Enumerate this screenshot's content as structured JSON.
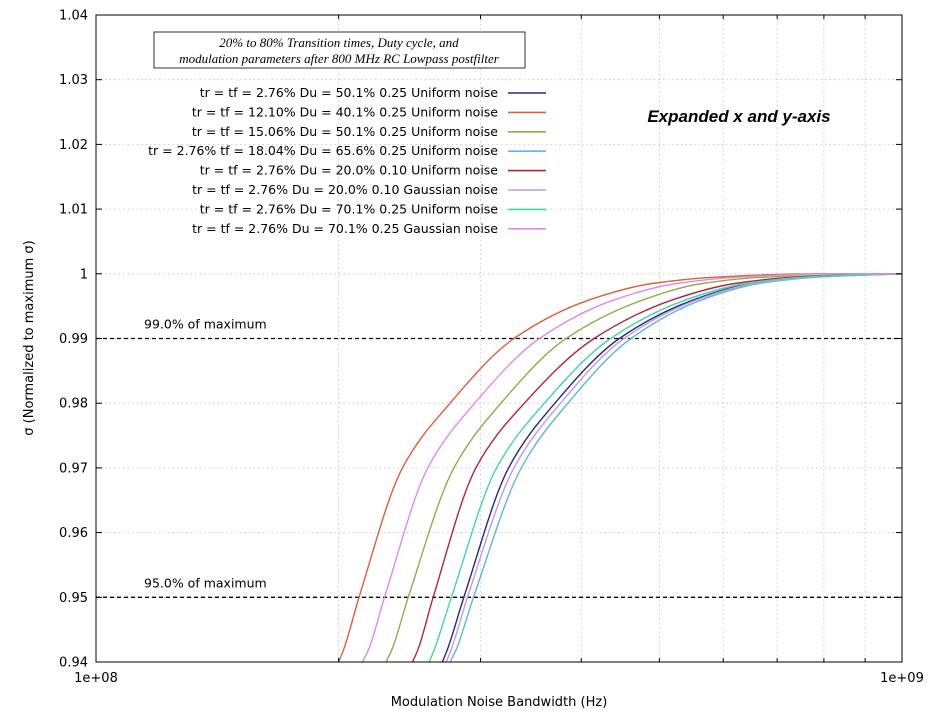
{
  "chart_data": {
    "type": "line",
    "title_lines": [
      "20% to 80% Transition times, Duty cycle, and",
      "modulation parameters after 800 MHz RC Lowpass postfilter"
    ],
    "annotation": "Expanded x and y-axis",
    "xlabel": "Modulation Noise Bandwidth (Hz)",
    "ylabel": "σ (Normalized to maximum σ)",
    "x_scale": "log",
    "xlim": [
      100000000,
      1000000000
    ],
    "ylim": [
      0.94,
      1.04
    ],
    "x_ticks": [
      {
        "value": 100000000,
        "label": "1e+08"
      },
      {
        "value": 1000000000,
        "label": "1e+09"
      }
    ],
    "y_ticks": [
      {
        "value": 0.94,
        "label": "0.94"
      },
      {
        "value": 0.95,
        "label": "0.95"
      },
      {
        "value": 0.96,
        "label": "0.96"
      },
      {
        "value": 0.97,
        "label": "0.97"
      },
      {
        "value": 0.98,
        "label": "0.98"
      },
      {
        "value": 0.99,
        "label": "0.99"
      },
      {
        "value": 1.0,
        "label": "1"
      },
      {
        "value": 1.01,
        "label": "1.01"
      },
      {
        "value": 1.02,
        "label": "1.02"
      },
      {
        "value": 1.03,
        "label": "1.03"
      },
      {
        "value": 1.04,
        "label": "1.04"
      }
    ],
    "grid": true,
    "legend_position": "top-left",
    "reference_lines": [
      {
        "y": 0.99,
        "label": "99.0% of maximum"
      },
      {
        "y": 0.95,
        "label": "95.0% of maximum"
      }
    ],
    "series": [
      {
        "name": "tr = tf = 2.76% Du = 50.1% 0.25 Uniform noise",
        "color": "#1f2a8c",
        "x": [
          269000000,
          273000000,
          286000000,
          325000000,
          371000000,
          446000000,
          552000000,
          650000000,
          770000000,
          1000000000
        ],
        "y": [
          0.94,
          0.942,
          0.95,
          0.97,
          0.98,
          0.99,
          0.996,
          0.9985,
          0.9995,
          1.0
        ]
      },
      {
        "name": "tr = tf = 12.10% Du = 40.1% 0.25 Uniform noise",
        "color": "#d9603b",
        "x": [
          200000000,
          203000000,
          212000000,
          240000000,
          275000000,
          330000000,
          410000000,
          490000000,
          590000000,
          780000000,
          1000000000
        ],
        "y": [
          0.94,
          0.942,
          0.95,
          0.97,
          0.98,
          0.99,
          0.996,
          0.9985,
          0.9995,
          1.0,
          1.0
        ]
      },
      {
        "name": "tr = tf = 15.06% Du = 50.1% 0.25 Uniform noise",
        "color": "#8fae4a",
        "x": [
          229000000,
          233000000,
          244000000,
          278000000,
          318000000,
          383000000,
          478000000,
          565000000,
          680000000,
          1000000000
        ],
        "y": [
          0.94,
          0.942,
          0.95,
          0.97,
          0.98,
          0.99,
          0.996,
          0.9985,
          0.9995,
          1.0
        ]
      },
      {
        "name": "tr = 2.76% tf = 18.04% Du = 65.6% 0.25 Uniform noise",
        "color": "#5bb8df",
        "x": [
          275000000,
          280000000,
          294000000,
          337000000,
          385000000,
          461000000,
          565000000,
          665000000,
          790000000,
          1000000000
        ],
        "y": [
          0.94,
          0.942,
          0.95,
          0.97,
          0.98,
          0.99,
          0.996,
          0.9985,
          0.9995,
          1.0
        ]
      },
      {
        "name": "tr = tf = 2.76% Du = 20.0% 0.10 Uniform noise",
        "color": "#b0273a",
        "x": [
          247000000,
          251000000,
          262000000,
          296000000,
          340000000,
          415000000,
          520000000,
          620000000,
          740000000,
          1000000000
        ],
        "y": [
          0.94,
          0.942,
          0.95,
          0.97,
          0.98,
          0.99,
          0.996,
          0.9985,
          0.9995,
          1.0
        ]
      },
      {
        "name": "tr = tf = 2.76% Du = 20.0% 0.10 Gaussian noise",
        "color": "#c39bdc",
        "x": [
          272000000,
          276000000,
          289000000,
          330000000,
          377000000,
          452000000,
          557000000,
          655000000,
          780000000,
          1000000000
        ],
        "y": [
          0.94,
          0.942,
          0.95,
          0.97,
          0.98,
          0.99,
          0.996,
          0.9985,
          0.9995,
          1.0
        ]
      },
      {
        "name": "tr = tf = 2.76% Du = 70.1% 0.25 Uniform noise",
        "color": "#3fd6a8",
        "x": [
          259000000,
          263000000,
          276000000,
          314000000,
          360000000,
          435000000,
          540000000,
          640000000,
          760000000,
          1000000000
        ],
        "y": [
          0.94,
          0.942,
          0.95,
          0.97,
          0.98,
          0.99,
          0.996,
          0.9985,
          0.9995,
          1.0
        ]
      },
      {
        "name": "tr = tf = 2.76% Du = 70.1% 0.25 Gaussian noise",
        "color": "#e08ae3",
        "x": [
          214000000,
          218000000,
          228000000,
          258000000,
          295000000,
          355000000,
          440000000,
          525000000,
          630000000,
          820000000,
          1000000000
        ],
        "y": [
          0.94,
          0.942,
          0.95,
          0.97,
          0.98,
          0.99,
          0.996,
          0.9985,
          0.9995,
          1.0,
          1.0
        ]
      }
    ]
  }
}
